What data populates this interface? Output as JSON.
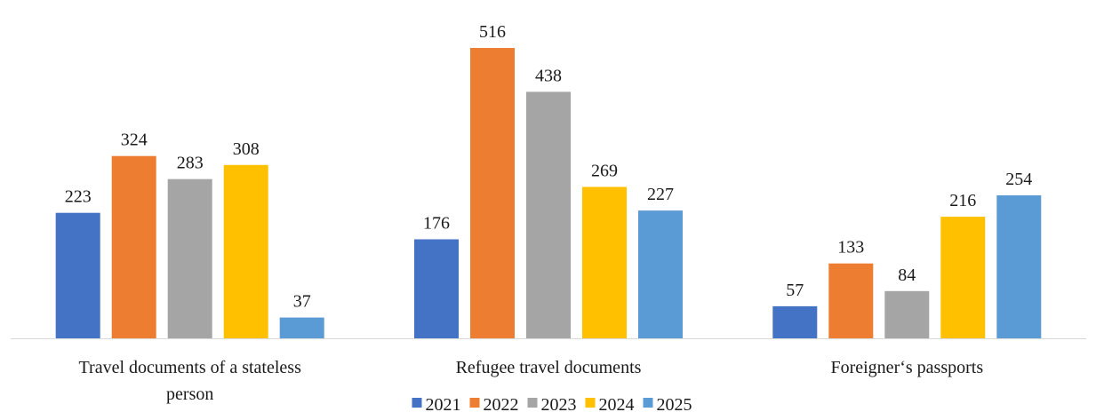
{
  "chart_data": {
    "type": "bar",
    "categories": [
      [
        "Travel documents of a stateless",
        "person"
      ],
      [
        "Refugee travel documents"
      ],
      [
        "Foreigner‘s passports"
      ]
    ],
    "series": [
      {
        "name": "2021",
        "color": "#4472C4",
        "values": [
          223,
          176,
          57
        ]
      },
      {
        "name": "2022",
        "color": "#ED7D31",
        "values": [
          324,
          516,
          133
        ]
      },
      {
        "name": "2023",
        "color": "#A5A5A5",
        "values": [
          283,
          438,
          84
        ]
      },
      {
        "name": "2024",
        "color": "#FFC000",
        "values": [
          308,
          269,
          216
        ]
      },
      {
        "name": "2025",
        "color": "#5B9BD5",
        "values": [
          37,
          227,
          254
        ]
      }
    ],
    "ylim": [
      0,
      516
    ],
    "data_labels": true,
    "grid": false,
    "legend_position": "bottom",
    "axis_line_color": "#D9D9D9"
  }
}
